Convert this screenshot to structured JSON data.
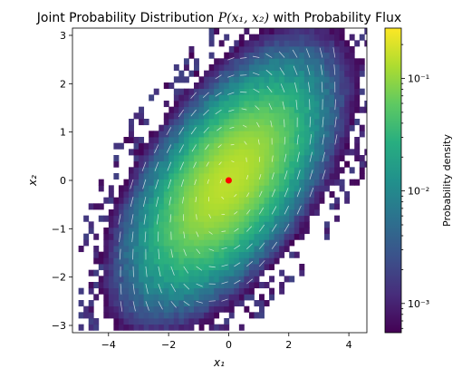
{
  "chart_data": {
    "type": "heatmap",
    "title_prefix": "Joint Probability Distribution ",
    "title_math": "P(x₁, x₂)",
    "title_suffix": " with Probability Flux",
    "xlabel": "x₁",
    "ylabel": "x₂",
    "xlim": [
      -5.2,
      4.6
    ],
    "ylim": [
      -3.15,
      3.15
    ],
    "xticks": [
      -4,
      -2,
      0,
      2,
      4
    ],
    "xtick_labels": [
      "−4",
      "−2",
      "0",
      "2",
      "4"
    ],
    "yticks": [
      -3,
      -2,
      -1,
      0,
      1,
      2,
      3
    ],
    "ytick_labels": [
      "−3",
      "−2",
      "−1",
      "0",
      "1",
      "2",
      "3"
    ],
    "colorbar": {
      "label": "Probability density",
      "scale": "log",
      "range": [
        0.00055,
        0.28
      ],
      "major_ticks": [
        0.001,
        0.01,
        0.1
      ],
      "major_tick_labels": [
        "10⁻³",
        "10⁻²",
        "10⁻¹"
      ],
      "colormap": "viridis"
    },
    "density": {
      "distribution": "bivariate gaussian",
      "mean": [
        0,
        0
      ],
      "std_x1": 1.3,
      "std_x2": 1.0,
      "correlation": 0.6,
      "peak_density": 0.15
    },
    "flux": {
      "style": "white arrows",
      "direction": "circulating around the mean"
    },
    "marker": {
      "x": 0,
      "y": 0,
      "color": "#ff0000"
    }
  }
}
